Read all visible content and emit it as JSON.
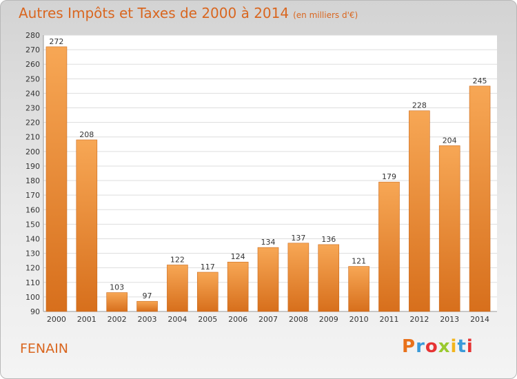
{
  "title": "Autres Impôts et Taxes de 2000 à 2014",
  "subtitle": "(en milliers d'€)",
  "place_label": "FENAIN",
  "logo": {
    "letters": [
      "P",
      "r",
      "o",
      "x",
      "i",
      "t",
      "i"
    ],
    "colors": [
      "#e8711a",
      "#3a9ad9",
      "#e63333",
      "#9ac92f",
      "#f2b51d",
      "#3a9ad9",
      "#e63333"
    ]
  },
  "chart_data": {
    "type": "bar",
    "categories": [
      "2000",
      "2001",
      "2002",
      "2003",
      "2004",
      "2005",
      "2006",
      "2007",
      "2008",
      "2009",
      "2010",
      "2011",
      "2012",
      "2013",
      "2014"
    ],
    "values": [
      272,
      208,
      103,
      97,
      122,
      117,
      124,
      134,
      137,
      136,
      121,
      179,
      228,
      204,
      245
    ],
    "ylim": [
      90,
      280
    ],
    "yticks": [
      90,
      100,
      110,
      120,
      130,
      140,
      150,
      160,
      170,
      180,
      190,
      200,
      210,
      220,
      230,
      240,
      250,
      260,
      270,
      280
    ],
    "grid": true,
    "bar_color": "#f0923a"
  }
}
